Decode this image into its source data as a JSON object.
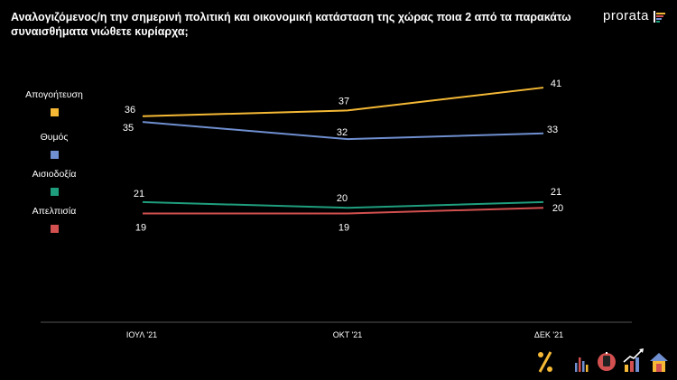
{
  "header": {
    "title_line1": "Αναλογιζόμενος/η την σημερινή πολιτική και οικονομική κατάσταση της χώρας ποια 2 από τα παρακάτω",
    "title_line2": "συναισθήματα νιώθετε κυρίαρχα;",
    "brand": "prorata"
  },
  "chart_data": {
    "type": "line",
    "title": "Αναλογιζόμενος/η την σημερινή πολιτική και οικονομική κατάσταση της χώρας ποια 2 από τα παρακάτω συναισθήματα νιώθετε κυρίαρχα;",
    "categories": [
      "ΙΟΥΛ '21",
      "ΟΚΤ '21",
      "ΔΕΚ '21"
    ],
    "ylim": [
      0,
      50
    ],
    "grid": false,
    "legend_placement": "left",
    "series": [
      {
        "name": "Απογοήτευση",
        "color": "#f5b935",
        "values": [
          36,
          37,
          41
        ],
        "labels": [
          "36",
          "37",
          "41"
        ]
      },
      {
        "name": "Θυμός",
        "color": "#6f8fd0",
        "values": [
          35,
          32,
          33
        ],
        "labels": [
          "35",
          "32",
          "33"
        ]
      },
      {
        "name": "Αισιοδοξία",
        "color": "#1f9e7e",
        "values": [
          21,
          20,
          21
        ],
        "labels": [
          "21",
          "20",
          "21"
        ]
      },
      {
        "name": "Απελπισία",
        "color": "#d2504f",
        "values": [
          19,
          19,
          20
        ],
        "labels": [
          "19",
          "19",
          "20"
        ]
      }
    ]
  },
  "footer": {
    "icons": [
      "percent-icon",
      "bar-chart-icon",
      "clock-icon",
      "growth-chart-icon",
      "home-icon"
    ]
  }
}
